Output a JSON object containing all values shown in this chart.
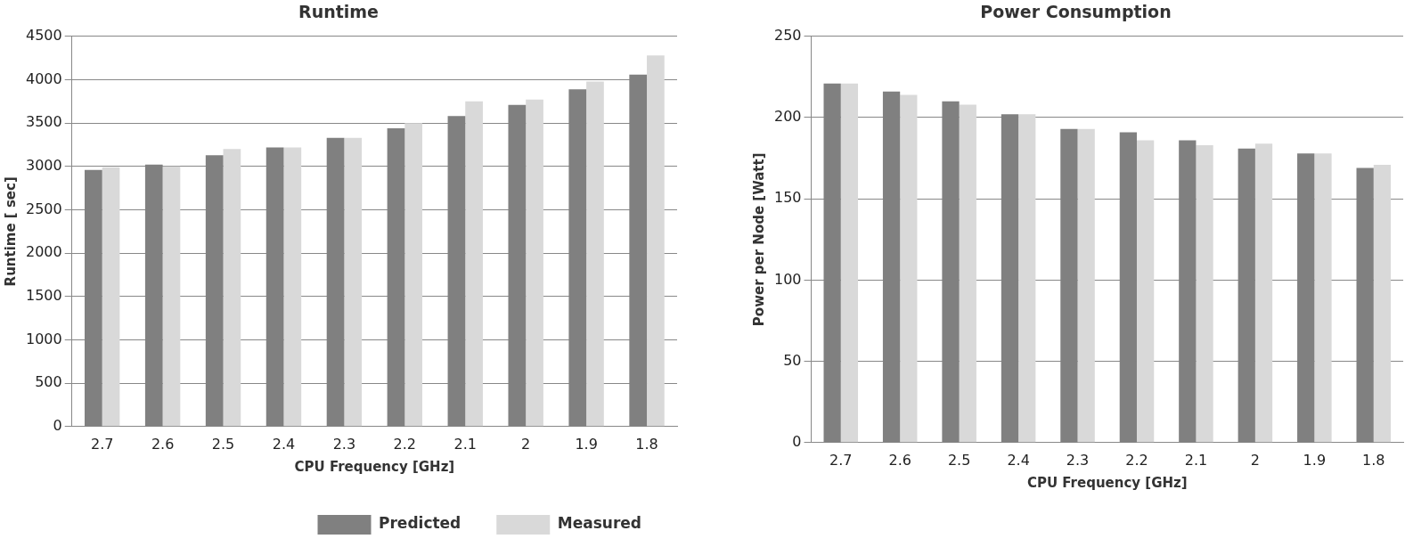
{
  "chart_data": [
    {
      "type": "bar",
      "title": "Runtime",
      "xlabel": "CPU Frequency [GHz]",
      "ylabel": "Runtime [ sec]",
      "categories": [
        "2.7",
        "2.6",
        "2.5",
        "2.4",
        "2.3",
        "2.2",
        "2.1",
        "2",
        "1.9",
        "1.8"
      ],
      "series": [
        {
          "name": "Predicted",
          "color": "#808080",
          "values": [
            2960,
            3020,
            3130,
            3220,
            3330,
            3440,
            3580,
            3710,
            3890,
            4060
          ]
        },
        {
          "name": "Measured",
          "color": "#d9d9d9",
          "values": [
            2990,
            3000,
            3200,
            3220,
            3330,
            3500,
            3750,
            3770,
            3980,
            4280
          ]
        }
      ],
      "ylim": [
        0,
        4500
      ],
      "yticks": [
        0,
        500,
        1000,
        1500,
        2000,
        2500,
        3000,
        3500,
        4000,
        4500
      ],
      "grid": "y",
      "legend": "bottom"
    },
    {
      "type": "bar",
      "title": "Power Consumption",
      "xlabel": "CPU Frequency [GHz]",
      "ylabel": "Power per Node [Watt]",
      "categories": [
        "2.7",
        "2.6",
        "2.5",
        "2.4",
        "2.3",
        "2.2",
        "2.1",
        "2",
        "1.9",
        "1.8"
      ],
      "series": [
        {
          "color": "#808080",
          "values": [
            221,
            216,
            210,
            202,
            193,
            191,
            186,
            181,
            178,
            169
          ]
        },
        {
          "color": "#d9d9d9",
          "values": [
            221,
            214,
            208,
            202,
            193,
            186,
            183,
            184,
            178,
            171
          ]
        }
      ],
      "ylim": [
        0,
        250
      ],
      "yticks": [
        0,
        50,
        100,
        150,
        200,
        250
      ],
      "grid": "y"
    }
  ]
}
